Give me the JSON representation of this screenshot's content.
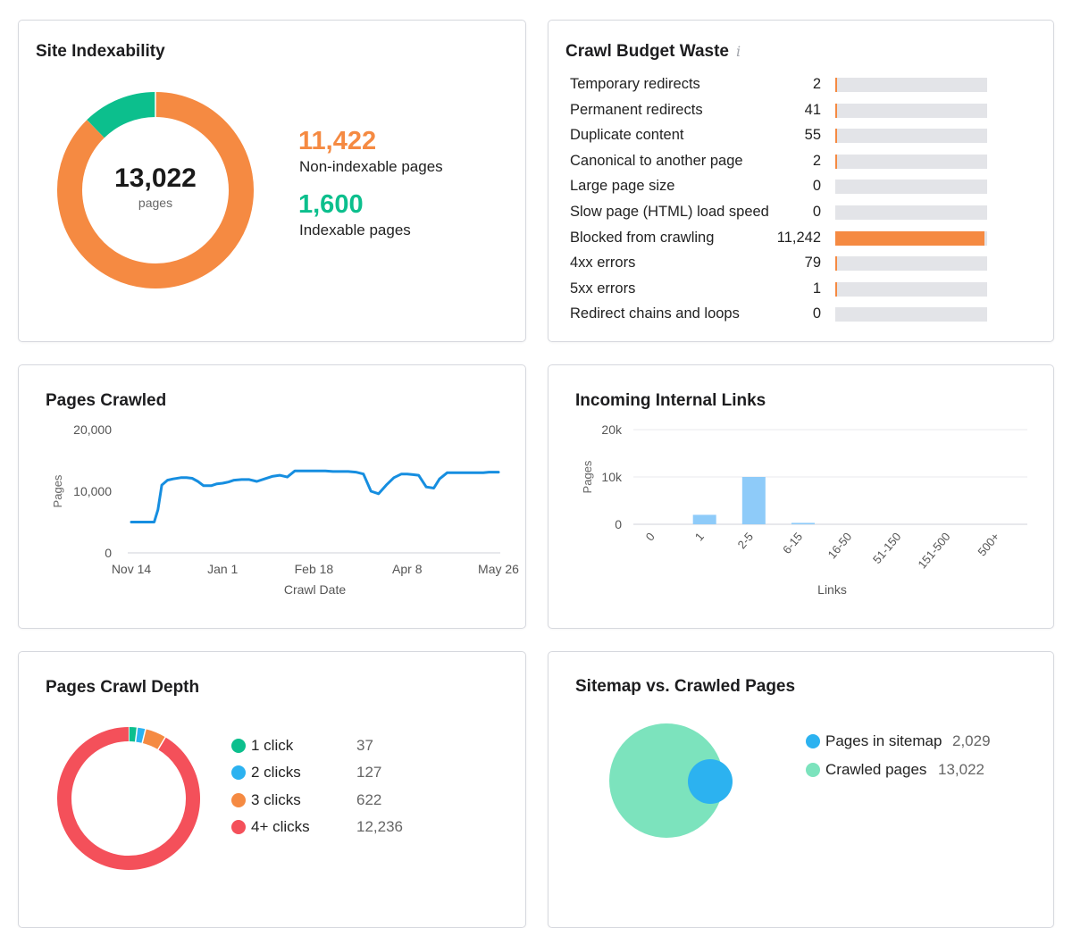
{
  "site_indexability": {
    "title": "Site Indexability",
    "total": "13,022",
    "total_label": "pages",
    "non_indexable_value": "11,422",
    "non_indexable_label": "Non-indexable pages",
    "indexable_value": "1,600",
    "indexable_label": "Indexable pages",
    "colors": {
      "non_indexable": "#f58a42",
      "indexable": "#0cbf8d"
    }
  },
  "crawl_budget": {
    "title": "Crawl Budget Waste",
    "info_icon": "info-icon",
    "rows": [
      {
        "label": "Temporary redirects",
        "value": "2",
        "num": 2
      },
      {
        "label": "Permanent redirects",
        "value": "41",
        "num": 41
      },
      {
        "label": "Duplicate content",
        "value": "55",
        "num": 55
      },
      {
        "label": "Canonical to another page",
        "value": "2",
        "num": 2
      },
      {
        "label": "Large page size",
        "value": "0",
        "num": 0
      },
      {
        "label": "Slow page (HTML) load speed",
        "value": "0",
        "num": 0
      },
      {
        "label": "Blocked from crawling",
        "value": "11,242",
        "num": 11242
      },
      {
        "label": "4xx errors",
        "value": "79",
        "num": 79
      },
      {
        "label": "5xx errors",
        "value": "1",
        "num": 1
      },
      {
        "label": "Redirect chains and loops",
        "value": "0",
        "num": 0
      }
    ],
    "max": 11242
  },
  "pages_crawled": {
    "title": "Pages Crawled"
  },
  "incoming_links": {
    "title": "Incoming Internal Links"
  },
  "crawl_depth": {
    "title": "Pages Crawl Depth",
    "items": [
      {
        "label": "1 click",
        "value": "37",
        "num": 37,
        "color": "#0cbf8d"
      },
      {
        "label": "2 clicks",
        "value": "127",
        "num": 127,
        "color": "#2cb2f0"
      },
      {
        "label": "3 clicks",
        "value": "622",
        "num": 622,
        "color": "#f58a42"
      },
      {
        "label": "4+ clicks",
        "value": "12,236",
        "num": 12236,
        "color": "#f4505a"
      }
    ]
  },
  "sitemap": {
    "title": "Sitemap vs. Crawled Pages",
    "items": [
      {
        "label": "Pages in sitemap",
        "value": "2,029",
        "color": "#2cb2f0"
      },
      {
        "label": "Crawled pages",
        "value": "13,022",
        "color": "#7ce3bd"
      }
    ]
  },
  "chart_data": [
    {
      "type": "pie",
      "title": "Site Indexability",
      "categories": [
        "Non-indexable pages",
        "Indexable pages"
      ],
      "values": [
        11422,
        1600
      ]
    },
    {
      "type": "bar",
      "title": "Crawl Budget Waste",
      "categories": [
        "Temporary redirects",
        "Permanent redirects",
        "Duplicate content",
        "Canonical to another page",
        "Large page size",
        "Slow page (HTML) load speed",
        "Blocked from crawling",
        "4xx errors",
        "5xx errors",
        "Redirect chains and loops"
      ],
      "values": [
        2,
        41,
        55,
        2,
        0,
        0,
        11242,
        79,
        1,
        0
      ]
    },
    {
      "type": "line",
      "title": "Pages Crawled",
      "xlabel": "Crawl Date",
      "ylabel": "Pages",
      "ylim": [
        0,
        20000
      ],
      "yticks": [
        "0",
        "10,000",
        "20,000"
      ],
      "ytick_values": [
        0,
        10000,
        20000
      ],
      "xticks": [
        "Nov 14",
        "Jan 1",
        "Feb 18",
        "Apr 8",
        "May 26"
      ],
      "xtick_values": [
        0,
        48,
        96,
        145,
        193
      ],
      "x": [
        0,
        9,
        12,
        14,
        16,
        19,
        22,
        26,
        29,
        32,
        35,
        38,
        42,
        45,
        48,
        51,
        54,
        58,
        62,
        66,
        70,
        74,
        78,
        82,
        86,
        90,
        94,
        98,
        102,
        106,
        110,
        114,
        118,
        122,
        126,
        130,
        134,
        138,
        142,
        145,
        148,
        151,
        155,
        159,
        162,
        166,
        170,
        173,
        176,
        179,
        182,
        185,
        188,
        193
      ],
      "values": [
        5000,
        5000,
        5000,
        7000,
        11000,
        11800,
        12000,
        12200,
        12200,
        12100,
        11600,
        10900,
        10900,
        11200,
        11300,
        11500,
        11800,
        11900,
        11900,
        11600,
        12000,
        12400,
        12600,
        12300,
        13300,
        13300,
        13300,
        13300,
        13300,
        13200,
        13200,
        13200,
        13100,
        12800,
        10000,
        9600,
        11000,
        12200,
        12800,
        12800,
        12700,
        12600,
        10700,
        10500,
        12000,
        13000,
        13000,
        13000,
        13000,
        13000,
        13000,
        13000,
        13100,
        13100
      ]
    },
    {
      "type": "bar",
      "title": "Incoming Internal Links",
      "xlabel": "Links",
      "ylabel": "Pages",
      "ylim": [
        0,
        20000
      ],
      "yticks": [
        "0",
        "10k",
        "20k"
      ],
      "ytick_values": [
        0,
        10000,
        20000
      ],
      "categories": [
        "0",
        "1",
        "2-5",
        "6-15",
        "16-50",
        "51-150",
        "151-500",
        "500+"
      ],
      "values": [
        0,
        2000,
        10000,
        300,
        0,
        0,
        0,
        0
      ]
    },
    {
      "type": "pie",
      "title": "Pages Crawl Depth",
      "categories": [
        "1 click",
        "2 clicks",
        "3 clicks",
        "4+ clicks"
      ],
      "values": [
        37,
        127,
        622,
        12236
      ]
    },
    {
      "type": "venn",
      "title": "Sitemap vs. Crawled Pages",
      "categories": [
        "Pages in sitemap",
        "Crawled pages"
      ],
      "values": [
        2029,
        13022
      ]
    }
  ]
}
